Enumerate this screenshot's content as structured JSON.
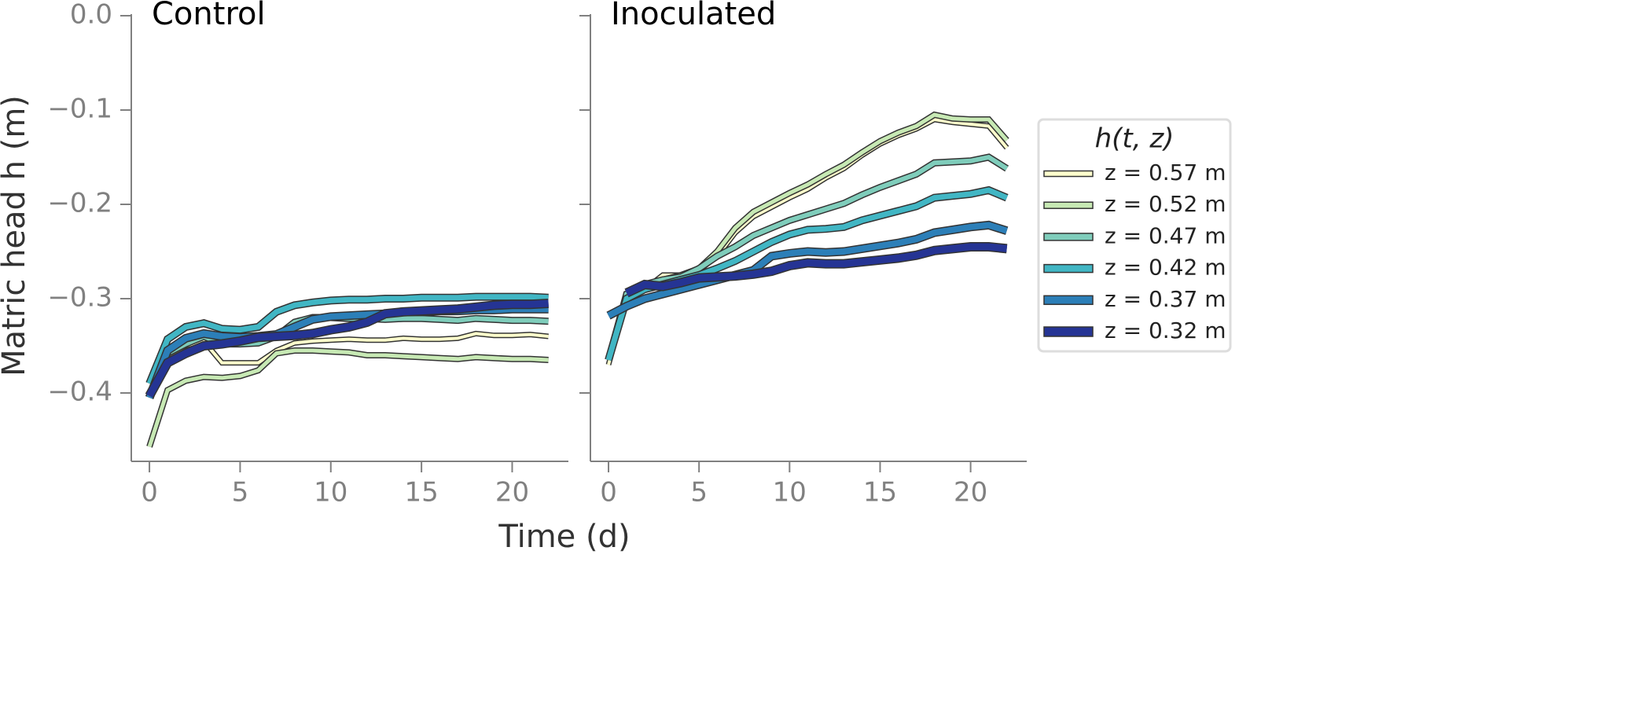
{
  "chart_data": [
    {
      "type": "line",
      "title": "Control",
      "x": [
        0,
        1,
        2,
        3,
        4,
        5,
        6,
        7,
        8,
        9,
        10,
        11,
        12,
        13,
        14,
        15,
        16,
        17,
        18,
        19,
        20,
        21,
        22
      ],
      "xlim": [
        -1,
        23.1
      ],
      "xticks": [
        0,
        5,
        10,
        15,
        20
      ],
      "ylim": [
        -0.4725,
        0
      ],
      "yticks": [
        {
          "value": 0,
          "label": "0.0"
        },
        {
          "value": -0.1,
          "label": "−0.1"
        },
        {
          "value": -0.2,
          "label": "−0.2"
        },
        {
          "value": -0.3,
          "label": "−0.3"
        },
        {
          "value": -0.4,
          "label": "−0.4"
        }
      ],
      "series": [
        {
          "name": "z = 0.57 m",
          "color": "#ffffcc",
          "values": [
            -0.4,
            -0.362,
            -0.35,
            -0.345,
            -0.368,
            -0.368,
            -0.368,
            -0.355,
            -0.347,
            -0.345,
            -0.344,
            -0.343,
            -0.344,
            -0.344,
            -0.342,
            -0.343,
            -0.343,
            -0.342,
            -0.337,
            -0.339,
            -0.339,
            -0.338,
            -0.34
          ]
        },
        {
          "name": "z = 0.52 m",
          "color": "#c7e9b4",
          "values": [
            -0.457,
            -0.397,
            -0.387,
            -0.383,
            -0.384,
            -0.382,
            -0.376,
            -0.358,
            -0.355,
            -0.355,
            -0.356,
            -0.357,
            -0.36,
            -0.36,
            -0.361,
            -0.362,
            -0.363,
            -0.364,
            -0.362,
            -0.363,
            -0.364,
            -0.364,
            -0.365
          ]
        },
        {
          "name": "z = 0.47 m",
          "color": "#7fcdbb",
          "values": [
            -0.39,
            -0.358,
            -0.348,
            -0.34,
            -0.348,
            -0.348,
            -0.347,
            -0.34,
            -0.325,
            -0.32,
            -0.32,
            -0.321,
            -0.321,
            -0.322,
            -0.321,
            -0.321,
            -0.322,
            -0.323,
            -0.321,
            -0.322,
            -0.323,
            -0.323,
            -0.324
          ]
        },
        {
          "name": "z = 0.42 m",
          "color": "#41b6c4",
          "values": [
            -0.39,
            -0.343,
            -0.33,
            -0.326,
            -0.332,
            -0.333,
            -0.33,
            -0.314,
            -0.307,
            -0.304,
            -0.302,
            -0.301,
            -0.301,
            -0.3,
            -0.3,
            -0.299,
            -0.299,
            -0.299,
            -0.298,
            -0.298,
            -0.298,
            -0.298,
            -0.299
          ]
        },
        {
          "name": "z = 0.37 m",
          "color": "#2c7fb8",
          "values": [
            -0.405,
            -0.355,
            -0.342,
            -0.337,
            -0.34,
            -0.341,
            -0.34,
            -0.338,
            -0.33,
            -0.322,
            -0.319,
            -0.318,
            -0.317,
            -0.316,
            -0.314,
            -0.314,
            -0.313,
            -0.313,
            -0.312,
            -0.312,
            -0.311,
            -0.311,
            -0.311
          ]
        },
        {
          "name": "z = 0.32 m",
          "color": "#253494",
          "values": [
            -0.403,
            -0.368,
            -0.358,
            -0.35,
            -0.348,
            -0.345,
            -0.341,
            -0.34,
            -0.339,
            -0.337,
            -0.333,
            -0.33,
            -0.325,
            -0.316,
            -0.314,
            -0.313,
            -0.312,
            -0.311,
            -0.309,
            -0.307,
            -0.306,
            -0.306,
            -0.305
          ]
        }
      ]
    },
    {
      "type": "line",
      "title": "Inoculated",
      "x": [
        0,
        1,
        2,
        3,
        4,
        5,
        6,
        7,
        8,
        9,
        10,
        11,
        12,
        13,
        14,
        15,
        16,
        17,
        18,
        19,
        20,
        21,
        22
      ],
      "xlim": [
        -1,
        23.1
      ],
      "xticks": [
        0,
        5,
        10,
        15,
        20
      ],
      "series": [
        {
          "color": "#ffffcc",
          "values": [
            -0.37,
            -0.3,
            -0.29,
            -0.275,
            -0.275,
            -0.27,
            -0.255,
            -0.23,
            -0.213,
            -0.203,
            -0.193,
            -0.184,
            -0.172,
            -0.162,
            -0.148,
            -0.136,
            -0.127,
            -0.12,
            -0.11,
            -0.113,
            -0.115,
            -0.117,
            -0.14
          ]
        },
        {
          "color": "#c7e9b4",
          "values": [
            -0.365,
            -0.3,
            -0.29,
            -0.28,
            -0.275,
            -0.268,
            -0.25,
            -0.225,
            -0.208,
            -0.198,
            -0.188,
            -0.179,
            -0.168,
            -0.158,
            -0.145,
            -0.133,
            -0.124,
            -0.117,
            -0.105,
            -0.109,
            -0.11,
            -0.11,
            -0.132
          ]
        },
        {
          "color": "#7fcdbb",
          "values": [
            -0.365,
            -0.295,
            -0.285,
            -0.28,
            -0.277,
            -0.268,
            -0.255,
            -0.245,
            -0.233,
            -0.225,
            -0.217,
            -0.211,
            -0.205,
            -0.199,
            -0.19,
            -0.182,
            -0.175,
            -0.168,
            -0.156,
            -0.155,
            -0.154,
            -0.15,
            -0.162
          ]
        },
        {
          "color": "#41b6c4",
          "values": [
            -0.365,
            -0.3,
            -0.29,
            -0.285,
            -0.28,
            -0.275,
            -0.268,
            -0.26,
            -0.25,
            -0.24,
            -0.232,
            -0.227,
            -0.226,
            -0.224,
            -0.217,
            -0.212,
            -0.207,
            -0.202,
            -0.193,
            -0.191,
            -0.189,
            -0.185,
            -0.193
          ]
        },
        {
          "color": "#2c7fb8",
          "values": [
            -0.318,
            -0.308,
            -0.3,
            -0.295,
            -0.29,
            -0.285,
            -0.28,
            -0.275,
            -0.27,
            -0.255,
            -0.252,
            -0.25,
            -0.251,
            -0.25,
            -0.247,
            -0.244,
            -0.241,
            -0.237,
            -0.23,
            -0.227,
            -0.224,
            -0.222,
            -0.228
          ]
        },
        {
          "color": "#253494",
          "values": [
            null,
            -0.294,
            -0.285,
            -0.287,
            -0.283,
            -0.278,
            -0.277,
            -0.276,
            -0.274,
            -0.271,
            -0.265,
            -0.262,
            -0.263,
            -0.263,
            -0.261,
            -0.259,
            -0.257,
            -0.254,
            -0.249,
            -0.247,
            -0.245,
            -0.245,
            -0.247
          ]
        }
      ]
    }
  ],
  "xlabel": "Time (d)",
  "ylabel": "Matric head h (m)",
  "legend_title": "h(t, z)"
}
